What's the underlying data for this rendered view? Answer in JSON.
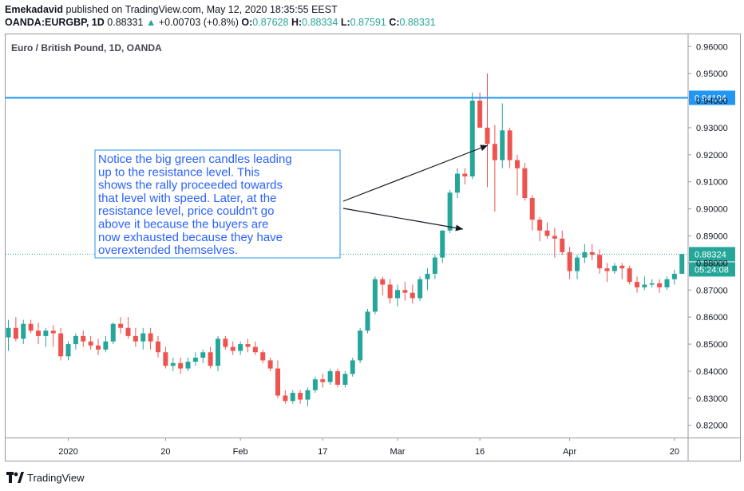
{
  "header": {
    "publisher": "Emekadavid",
    "published_text": "published on TradingView.com, May 12, 2020 18:35:55 EEST",
    "symbol": "OANDA:EURGBP, 1D",
    "last": "0.88331",
    "change_arrow": "▲",
    "change": "+0.00703 (+0.8%)",
    "o_label": "O:",
    "o_value": "0.87628",
    "h_label": "H:",
    "h_value": "0.88334",
    "l_label": "L:",
    "l_value": "0.87591",
    "c_label": "C:",
    "c_value": "0.88331"
  },
  "footer": {
    "brand": "TradingView"
  },
  "colors": {
    "up": "#26a69a",
    "down": "#ef5350",
    "resistance": "#2196f3",
    "annotation": "#2962ff",
    "price_line": "#26a69a",
    "text": "#131722"
  },
  "chart_data": {
    "type": "candlestick",
    "title": "Euro / British Pound, 1D, OANDA",
    "y_ticks": [
      "0.82000",
      "0.83000",
      "0.84000",
      "0.85000",
      "0.86000",
      "0.87000",
      "0.88000",
      "0.89000",
      "0.90000",
      "0.91000",
      "0.92000",
      "0.93000",
      "0.94000",
      "0.95000",
      "0.96000"
    ],
    "x_ticks": [
      {
        "label": "2020",
        "index": 8
      },
      {
        "label": "20",
        "index": 21
      },
      {
        "label": "Feb",
        "index": 31
      },
      {
        "label": "17",
        "index": 42
      },
      {
        "label": "Mar",
        "index": 52
      },
      {
        "label": "16",
        "index": 63
      },
      {
        "label": "Apr",
        "index": 75
      },
      {
        "label": "20",
        "index": 89
      }
    ],
    "ylim": [
      0.8155,
      0.9645
    ],
    "resistance": {
      "value": 0.94104,
      "label": "0.94104"
    },
    "last_price": {
      "value": 0.88324,
      "label": "0.88324",
      "countdown": "05:24:08"
    },
    "annotation": "Notice the big green candles leading up to the resistance level. This shows the rally proceeded towards that level with speed. Later, at the resistance level, price couldn't go above it because the buyers are now exhausted because they have overextended themselves.",
    "candles": [
      [
        0.8525,
        0.859,
        0.8475,
        0.856
      ],
      [
        0.856,
        0.86,
        0.851,
        0.852
      ],
      [
        0.852,
        0.859,
        0.85,
        0.8575
      ],
      [
        0.8575,
        0.859,
        0.854,
        0.855
      ],
      [
        0.855,
        0.858,
        0.85,
        0.853
      ],
      [
        0.853,
        0.856,
        0.849,
        0.855
      ],
      [
        0.855,
        0.857,
        0.849,
        0.854
      ],
      [
        0.854,
        0.856,
        0.844,
        0.8455
      ],
      [
        0.8455,
        0.851,
        0.844,
        0.85
      ],
      [
        0.85,
        0.854,
        0.848,
        0.853
      ],
      [
        0.853,
        0.855,
        0.849,
        0.851
      ],
      [
        0.851,
        0.853,
        0.848,
        0.8495
      ],
      [
        0.8495,
        0.852,
        0.846,
        0.848
      ],
      [
        0.848,
        0.853,
        0.847,
        0.851
      ],
      [
        0.851,
        0.858,
        0.85,
        0.8575
      ],
      [
        0.8575,
        0.86,
        0.854,
        0.856
      ],
      [
        0.856,
        0.86,
        0.852,
        0.853
      ],
      [
        0.853,
        0.856,
        0.849,
        0.851
      ],
      [
        0.851,
        0.856,
        0.848,
        0.854
      ],
      [
        0.854,
        0.856,
        0.848,
        0.851
      ],
      [
        0.851,
        0.853,
        0.845,
        0.847
      ],
      [
        0.847,
        0.849,
        0.841,
        0.842
      ],
      [
        0.842,
        0.845,
        0.84,
        0.843
      ],
      [
        0.843,
        0.845,
        0.839,
        0.841
      ],
      [
        0.841,
        0.845,
        0.84,
        0.8435
      ],
      [
        0.8435,
        0.847,
        0.842,
        0.845
      ],
      [
        0.845,
        0.848,
        0.843,
        0.847
      ],
      [
        0.847,
        0.849,
        0.841,
        0.842
      ],
      [
        0.842,
        0.853,
        0.84,
        0.852
      ],
      [
        0.852,
        0.853,
        0.848,
        0.849
      ],
      [
        0.849,
        0.851,
        0.846,
        0.8475
      ],
      [
        0.8475,
        0.851,
        0.846,
        0.85
      ],
      [
        0.85,
        0.852,
        0.847,
        0.849
      ],
      [
        0.849,
        0.851,
        0.846,
        0.847
      ],
      [
        0.847,
        0.848,
        0.843,
        0.844
      ],
      [
        0.844,
        0.845,
        0.84,
        0.841
      ],
      [
        0.841,
        0.844,
        0.83,
        0.831
      ],
      [
        0.831,
        0.833,
        0.828,
        0.829
      ],
      [
        0.829,
        0.833,
        0.828,
        0.832
      ],
      [
        0.832,
        0.833,
        0.828,
        0.8295
      ],
      [
        0.8295,
        0.834,
        0.827,
        0.833
      ],
      [
        0.833,
        0.838,
        0.832,
        0.837
      ],
      [
        0.837,
        0.839,
        0.834,
        0.836
      ],
      [
        0.836,
        0.841,
        0.835,
        0.84
      ],
      [
        0.84,
        0.841,
        0.834,
        0.835
      ],
      [
        0.835,
        0.84,
        0.834,
        0.839
      ],
      [
        0.839,
        0.845,
        0.838,
        0.844
      ],
      [
        0.844,
        0.856,
        0.843,
        0.855
      ],
      [
        0.855,
        0.863,
        0.854,
        0.862
      ],
      [
        0.862,
        0.875,
        0.861,
        0.874
      ],
      [
        0.874,
        0.875,
        0.868,
        0.872
      ],
      [
        0.872,
        0.874,
        0.865,
        0.867
      ],
      [
        0.867,
        0.872,
        0.864,
        0.87
      ],
      [
        0.87,
        0.873,
        0.866,
        0.869
      ],
      [
        0.869,
        0.872,
        0.865,
        0.867
      ],
      [
        0.867,
        0.875,
        0.866,
        0.874
      ],
      [
        0.874,
        0.878,
        0.87,
        0.876
      ],
      [
        0.876,
        0.883,
        0.874,
        0.882
      ],
      [
        0.882,
        0.892,
        0.88,
        0.892
      ],
      [
        0.892,
        0.907,
        0.891,
        0.906
      ],
      [
        0.906,
        0.915,
        0.904,
        0.913
      ],
      [
        0.913,
        0.915,
        0.909,
        0.912
      ],
      [
        0.912,
        0.943,
        0.911,
        0.94
      ],
      [
        0.94,
        0.943,
        0.93,
        0.93
      ],
      [
        0.93,
        0.95,
        0.908,
        0.924
      ],
      [
        0.924,
        0.931,
        0.899,
        0.918
      ],
      [
        0.918,
        0.939,
        0.915,
        0.929
      ],
      [
        0.929,
        0.93,
        0.915,
        0.918
      ],
      [
        0.918,
        0.92,
        0.905,
        0.915
      ],
      [
        0.915,
        0.917,
        0.903,
        0.904
      ],
      [
        0.904,
        0.905,
        0.892,
        0.896
      ],
      [
        0.896,
        0.897,
        0.888,
        0.892
      ],
      [
        0.892,
        0.895,
        0.889,
        0.89
      ],
      [
        0.89,
        0.893,
        0.882,
        0.889
      ],
      [
        0.889,
        0.892,
        0.883,
        0.884
      ],
      [
        0.884,
        0.886,
        0.874,
        0.877
      ],
      [
        0.877,
        0.883,
        0.874,
        0.882
      ],
      [
        0.882,
        0.887,
        0.88,
        0.884
      ],
      [
        0.884,
        0.887,
        0.881,
        0.883
      ],
      [
        0.883,
        0.885,
        0.876,
        0.878
      ],
      [
        0.878,
        0.88,
        0.873,
        0.877
      ],
      [
        0.877,
        0.88,
        0.876,
        0.879
      ],
      [
        0.879,
        0.88,
        0.874,
        0.878
      ],
      [
        0.878,
        0.879,
        0.872,
        0.873
      ],
      [
        0.873,
        0.875,
        0.869,
        0.871
      ],
      [
        0.871,
        0.875,
        0.87,
        0.872
      ],
      [
        0.872,
        0.874,
        0.871,
        0.8725
      ],
      [
        0.8725,
        0.874,
        0.869,
        0.871
      ],
      [
        0.871,
        0.875,
        0.87,
        0.874
      ],
      [
        0.874,
        0.8775,
        0.872,
        0.876
      ],
      [
        0.876,
        0.8834,
        0.8759,
        0.8833
      ]
    ]
  }
}
